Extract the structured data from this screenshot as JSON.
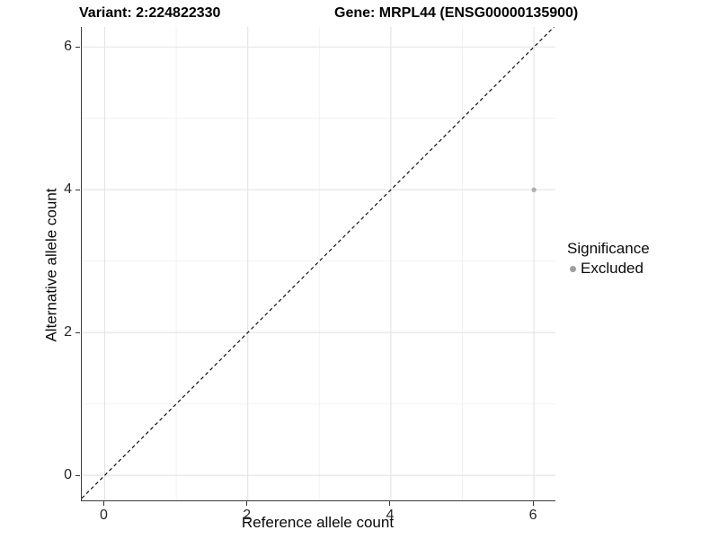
{
  "chart_data": {
    "type": "scatter",
    "title_parts": {
      "variant": "Variant: 2:224822330",
      "gene": "Gene: MRPL44 (ENSG00000135900)"
    },
    "xlabel": "Reference allele count",
    "ylabel": "Alternative allele count",
    "xlim": [
      -0.32,
      6.3
    ],
    "ylim": [
      -0.35,
      6.28
    ],
    "x_ticks": [
      0,
      2,
      4,
      6
    ],
    "y_ticks": [
      0,
      2,
      4,
      6
    ],
    "x_minor_ticks": [
      1,
      3,
      5
    ],
    "y_minor_ticks": [
      1,
      3,
      5
    ],
    "grid": true,
    "points": [
      {
        "x": 6,
        "y": 4,
        "series": "Excluded"
      }
    ],
    "reference_line": {
      "kind": "identity",
      "equation": "y = x",
      "style": "dashed"
    },
    "legend": {
      "title": "Significance",
      "position": "right",
      "entries": [
        {
          "label": "Excluded",
          "color": "#9e9e9e"
        }
      ]
    },
    "colors": {
      "point": "#aeaeae",
      "grid_major": "#e3e3e3",
      "grid_minor": "#f0f0f0",
      "dashed_line": "#111111",
      "axis_line": "#3c3c3c",
      "tick": "#333333"
    }
  }
}
